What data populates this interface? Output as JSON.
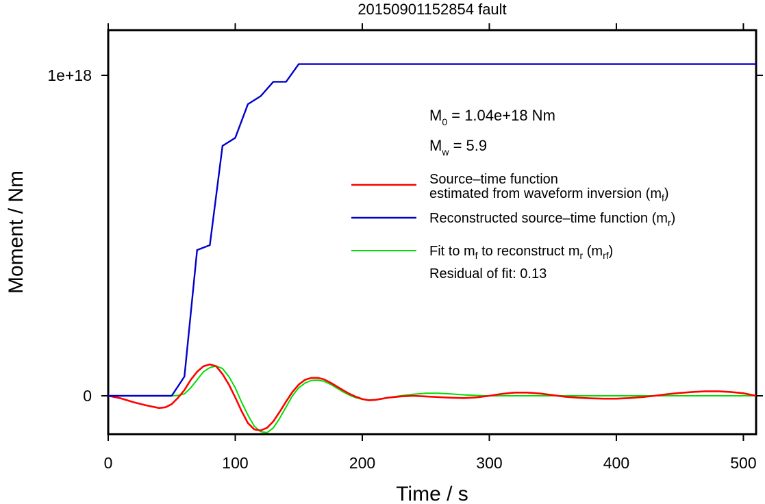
{
  "chart_data": {
    "type": "line",
    "title": "20150901152854 fault",
    "xlabel": "Time / s",
    "ylabel": "Moment / Nm",
    "xlim": [
      0,
      510
    ],
    "ylim": [
      -1.2e+17,
      1.25e+18
    ],
    "xticks": [
      0,
      100,
      200,
      300,
      400,
      500
    ],
    "xtick_labels": [
      "0",
      "100",
      "200",
      "300",
      "400",
      "500"
    ],
    "yticks": [
      0,
      1e+18
    ],
    "ytick_labels": [
      "0",
      "1e+18"
    ],
    "grid": false,
    "legend_position": "right",
    "annotations": {
      "m0": {
        "prefix": "M",
        "sub": "0",
        "text": " = 1.04e+18 Nm"
      },
      "mw": {
        "prefix": "M",
        "sub": "w",
        "text": " = 5.9"
      },
      "residual": "Residual of fit: 0.13"
    },
    "series": [
      {
        "name": "Source–time function estimated from waveform inversion (mf)",
        "legend_line1": "Source–time function",
        "legend_line2": "estimated from waveform inversion (m",
        "legend_sub": "f",
        "legend_tail": ")",
        "color": "#ff0000",
        "x": [
          0,
          10,
          20,
          30,
          40,
          45,
          50,
          55,
          60,
          65,
          70,
          75,
          80,
          85,
          90,
          95,
          100,
          105,
          110,
          115,
          120,
          125,
          130,
          135,
          140,
          145,
          150,
          155,
          160,
          165,
          170,
          175,
          180,
          185,
          190,
          195,
          200,
          205,
          210,
          220,
          230,
          240,
          250,
          260,
          270,
          280,
          290,
          300,
          310,
          320,
          330,
          340,
          350,
          360,
          370,
          380,
          390,
          400,
          410,
          420,
          430,
          440,
          450,
          460,
          470,
          480,
          490,
          500,
          510
        ],
        "y": [
          0,
          -8000000000000000.0,
          -2e+16,
          -3e+16,
          -3.8e+16,
          -3.6e+16,
          -2.6e+16,
          -6000000000000000.0,
          1.8e+16,
          5e+16,
          7.5e+16,
          9.2e+16,
          9.8e+16,
          9.2e+16,
          6.8e+16,
          3.5e+16,
          -5000000000000000.0,
          -4.8e+16,
          -8.5e+16,
          -1.05e+17,
          -1.08e+17,
          -1e+17,
          -8e+16,
          -5e+16,
          -1.8e+16,
          1.2e+16,
          3.5e+16,
          5e+16,
          5.6e+16,
          5.6e+16,
          5.1e+16,
          4.1e+16,
          2.9e+16,
          1.7e+16,
          6000000000000000.0,
          -3000000000000000.0,
          -1e+16,
          -1.4e+16,
          -1.3e+16,
          -6000000000000000.0,
          -2000000000000000.0,
          0,
          -2000000000000000.0,
          -4000000000000000.0,
          -6000000000000000.0,
          -7000000000000000.0,
          -5000000000000000.0,
          0,
          6000000000000000.0,
          1e+16,
          1e+16,
          7000000000000000.0,
          2000000000000000.0,
          -3000000000000000.0,
          -6000000000000000.0,
          -8000000000000000.0,
          -9000000000000000.0,
          -9000000000000000.0,
          -7000000000000000.0,
          -4000000000000000.0,
          0,
          5000000000000000.0,
          9000000000000000.0,
          1.2e+16,
          1.4e+16,
          1.4e+16,
          1.2e+16,
          8000000000000000.0,
          0
        ]
      },
      {
        "name": "Reconstructed source–time function (mr)",
        "legend_line1": "Reconstructed source–time function (m",
        "legend_sub": "r",
        "legend_tail": ")",
        "color": "#0000cc",
        "x": [
          0,
          50,
          60,
          70,
          80,
          90,
          100,
          110,
          120,
          130,
          140,
          150,
          510
        ],
        "y": [
          0,
          0,
          6e+16,
          4.55e+17,
          4.7e+17,
          7.8e+17,
          8.05e+17,
          9.1e+17,
          9.35e+17,
          9.8e+17,
          9.8e+17,
          1.035e+18,
          1.035e+18
        ]
      },
      {
        "name": "Fit to mf to reconstruct mr (mrf)",
        "legend_parts": [
          "Fit to m",
          "f",
          " to reconstruct m",
          "r",
          " (m",
          "rf",
          ")"
        ],
        "color": "#00dd00",
        "x": [
          0,
          50,
          55,
          60,
          65,
          70,
          75,
          80,
          85,
          90,
          95,
          100,
          105,
          110,
          115,
          120,
          125,
          130,
          135,
          140,
          145,
          150,
          155,
          160,
          165,
          170,
          175,
          180,
          185,
          190,
          195,
          200,
          205,
          210,
          220,
          230,
          240,
          250,
          260,
          270,
          280,
          290,
          300,
          310,
          320,
          330,
          340,
          350,
          360,
          370,
          380,
          390,
          400,
          410,
          420,
          430,
          440,
          450,
          460,
          470,
          480,
          490,
          500,
          510
        ],
        "y": [
          0,
          0,
          1000000000000000.0,
          6000000000000000.0,
          2.5e+16,
          5e+16,
          7.5e+16,
          8.8e+16,
          9.3e+16,
          8.5e+16,
          6e+16,
          2.5e+16,
          -2e+16,
          -6e+16,
          -9.5e+16,
          -1.12e+17,
          -1.15e+17,
          -1e+17,
          -7e+16,
          -3.5e+16,
          0,
          2.5e+16,
          4e+16,
          4.8e+16,
          4.9e+16,
          4.5e+16,
          3.6e+16,
          2.4e+16,
          1.2e+16,
          2000000000000000.0,
          -6000000000000000.0,
          -1.1e+16,
          -1.3e+16,
          -1.2e+16,
          -6000000000000000.0,
          0,
          5000000000000000.0,
          8000000000000000.0,
          8000000000000000.0,
          6000000000000000.0,
          3000000000000000.0,
          1000000000000000.0,
          0,
          0,
          0,
          0,
          0,
          0,
          0,
          0,
          0,
          0,
          0,
          0,
          0,
          0,
          0,
          0,
          0,
          0,
          0,
          0,
          0,
          0
        ]
      }
    ]
  }
}
